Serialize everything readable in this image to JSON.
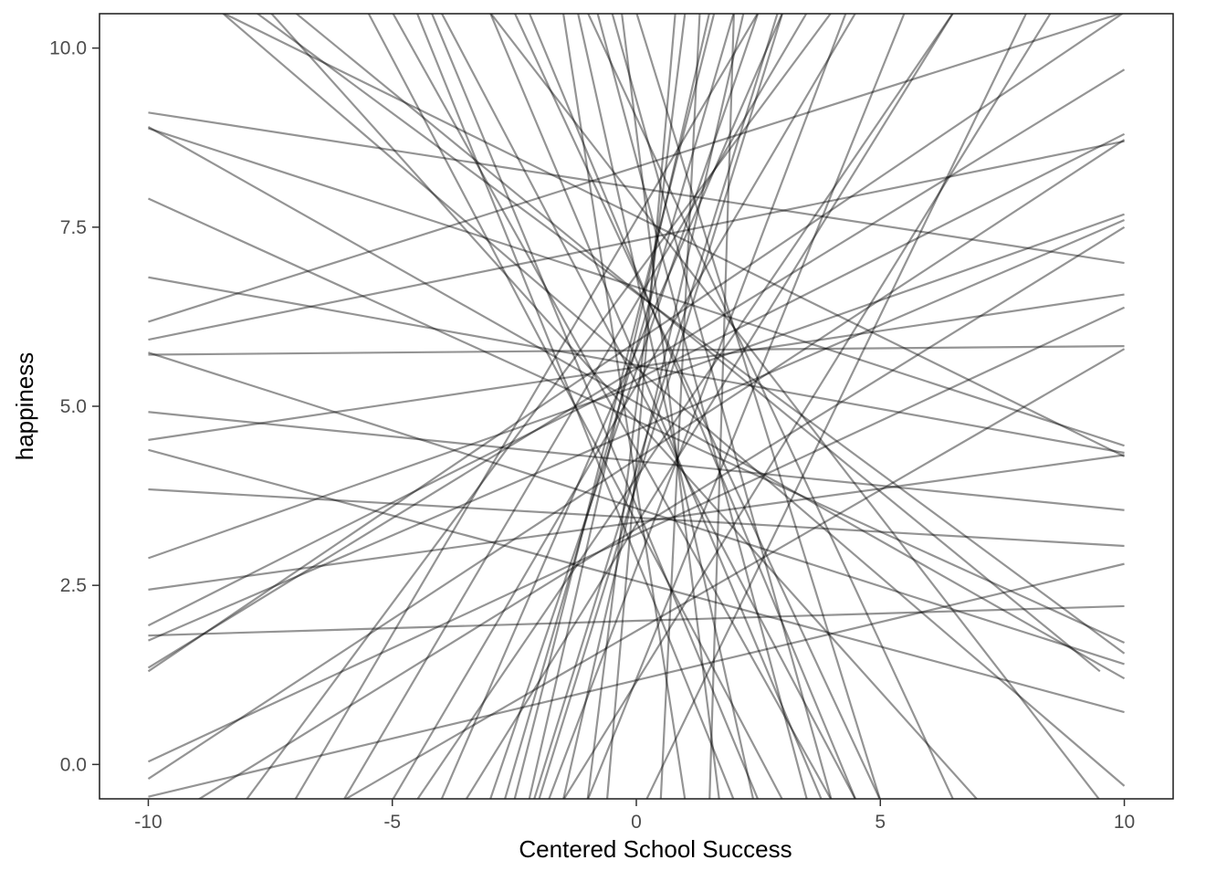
{
  "chart_data": {
    "type": "line",
    "title": "",
    "xlabel": "Centered School Success",
    "ylabel": "happiness",
    "xlim": [
      -11,
      11
    ],
    "ylim": [
      -0.48,
      10.48
    ],
    "x_ticks": [
      -10,
      -5,
      0,
      5,
      10
    ],
    "x_tick_labels": [
      "-10",
      "-5",
      "0",
      "5",
      "10"
    ],
    "y_ticks": [
      0,
      2.5,
      5,
      7.5,
      10
    ],
    "y_tick_labels": [
      "0.0",
      "2.5",
      "5.0",
      "7.5",
      "10.0"
    ],
    "grid": false,
    "line_color": "#000000",
    "line_opacity": 0.42,
    "series": [
      {
        "x": [
          -10,
          10
        ],
        "y": [
          9.1,
          7.0
        ]
      },
      {
        "x": [
          -10,
          10
        ],
        "y": [
          8.9,
          1.2
        ]
      },
      {
        "x": [
          -10,
          10
        ],
        "y": [
          8.88,
          4.45
        ]
      },
      {
        "x": [
          -10,
          10
        ],
        "y": [
          7.9,
          1.7
        ]
      },
      {
        "x": [
          -10,
          10
        ],
        "y": [
          6.8,
          4.35
        ]
      },
      {
        "x": [
          -10,
          10
        ],
        "y": [
          6.18,
          10.5
        ]
      },
      {
        "x": [
          -10,
          10
        ],
        "y": [
          5.93,
          8.7
        ]
      },
      {
        "x": [
          -10,
          10
        ],
        "y": [
          5.75,
          1.4
        ]
      },
      {
        "x": [
          -10,
          10
        ],
        "y": [
          5.72,
          5.84
        ]
      },
      {
        "x": [
          -10,
          10
        ],
        "y": [
          4.92,
          3.55
        ]
      },
      {
        "x": [
          -10,
          10
        ],
        "y": [
          4.53,
          6.56
        ]
      },
      {
        "x": [
          -10,
          10
        ],
        "y": [
          4.39,
          0.73
        ]
      },
      {
        "x": [
          -10,
          10
        ],
        "y": [
          3.84,
          3.05
        ]
      },
      {
        "x": [
          -10,
          10
        ],
        "y": [
          2.88,
          7.68
        ]
      },
      {
        "x": [
          -10,
          10
        ],
        "y": [
          2.44,
          4.32
        ]
      },
      {
        "x": [
          -10,
          10
        ],
        "y": [
          1.94,
          8.8
        ]
      },
      {
        "x": [
          -10,
          10
        ],
        "y": [
          1.8,
          2.21
        ]
      },
      {
        "x": [
          -10,
          10
        ],
        "y": [
          1.73,
          7.6
        ]
      },
      {
        "x": [
          -10,
          10
        ],
        "y": [
          1.35,
          9.7
        ]
      },
      {
        "x": [
          -10,
          10
        ],
        "y": [
          0.04,
          6.38
        ]
      },
      {
        "x": [
          -10,
          10
        ],
        "y": [
          -0.2,
          8.72
        ]
      },
      {
        "x": [
          -10,
          10
        ],
        "y": [
          -0.45,
          2.8
        ]
      },
      {
        "x": [
          -8.5,
          10
        ],
        "y": [
          10.5,
          -0.3
        ]
      },
      {
        "x": [
          -7.8,
          10
        ],
        "y": [
          10.5,
          1.55
        ]
      },
      {
        "x": [
          -7.5,
          7.0
        ],
        "y": [
          10.5,
          -0.5
        ]
      },
      {
        "x": [
          -8.0,
          4.0
        ],
        "y": [
          -0.5,
          10.5
        ]
      },
      {
        "x": [
          -7.0,
          2.5
        ],
        "y": [
          -0.5,
          10.5
        ]
      },
      {
        "x": [
          -6.0,
          3.5
        ],
        "y": [
          -0.5,
          10.5
        ]
      },
      {
        "x": [
          -5.0,
          4.5
        ],
        "y": [
          -0.5,
          10.5
        ]
      },
      {
        "x": [
          -4.5,
          6.5
        ],
        "y": [
          -0.5,
          10.5
        ]
      },
      {
        "x": [
          -4.0,
          3.0
        ],
        "y": [
          -0.5,
          10.5
        ]
      },
      {
        "x": [
          -3.0,
          2.5
        ],
        "y": [
          -0.5,
          10.5
        ]
      },
      {
        "x": [
          -2.7,
          2.0
        ],
        "y": [
          -0.5,
          10.5
        ]
      },
      {
        "x": [
          -2.5,
          1.6
        ],
        "y": [
          -0.5,
          10.5
        ]
      },
      {
        "x": [
          -2.2,
          1.5
        ],
        "y": [
          -0.5,
          10.5
        ]
      },
      {
        "x": [
          -2.1,
          2.9
        ],
        "y": [
          -0.5,
          10.5
        ]
      },
      {
        "x": [
          -2.0,
          3.0
        ],
        "y": [
          -0.5,
          10.5
        ]
      },
      {
        "x": [
          -1.8,
          4.3
        ],
        "y": [
          -0.5,
          10.5
        ]
      },
      {
        "x": [
          -1.5,
          2.2
        ],
        "y": [
          -0.5,
          10.5
        ]
      },
      {
        "x": [
          -1.0,
          1.0
        ],
        "y": [
          -0.5,
          10.5
        ]
      },
      {
        "x": [
          -0.6,
          0.8
        ],
        "y": [
          -0.5,
          10.5
        ]
      },
      {
        "x": [
          -5.5,
          3.0
        ],
        "y": [
          10.5,
          -0.5
        ]
      },
      {
        "x": [
          -5.0,
          4.0
        ],
        "y": [
          10.5,
          -0.5
        ]
      },
      {
        "x": [
          -4.5,
          2.0
        ],
        "y": [
          10.5,
          -0.5
        ]
      },
      {
        "x": [
          -4.2,
          2.5
        ],
        "y": [
          10.5,
          -0.5
        ]
      },
      {
        "x": [
          -4.0,
          4.5
        ],
        "y": [
          10.5,
          -0.5
        ]
      },
      {
        "x": [
          -3.0,
          3.8
        ],
        "y": [
          10.5,
          -0.5
        ]
      },
      {
        "x": [
          -2.5,
          5.0
        ],
        "y": [
          10.5,
          -0.5
        ]
      },
      {
        "x": [
          -2.2,
          4.5
        ],
        "y": [
          10.5,
          -0.5
        ]
      },
      {
        "x": [
          -1.5,
          1.0
        ],
        "y": [
          10.5,
          -0.5
        ]
      },
      {
        "x": [
          -1.0,
          6.5
        ],
        "y": [
          10.5,
          -0.5
        ]
      },
      {
        "x": [
          -0.8,
          3.5
        ],
        "y": [
          10.5,
          -0.5
        ]
      },
      {
        "x": [
          -0.5,
          4.0
        ],
        "y": [
          10.5,
          -0.5
        ]
      },
      {
        "x": [
          0.0,
          5.0
        ],
        "y": [
          10.5,
          -0.5
        ]
      },
      {
        "x": [
          -3.0,
          9.5
        ],
        "y": [
          10.5,
          -0.5
        ]
      },
      {
        "x": [
          -10,
          10
        ],
        "y": [
          1.3,
          10.5
        ]
      },
      {
        "x": [
          -9.0,
          10
        ],
        "y": [
          -0.5,
          7.5
        ]
      },
      {
        "x": [
          -7.0,
          9.5
        ],
        "y": [
          10.5,
          1.3
        ]
      },
      {
        "x": [
          -8.5,
          10
        ],
        "y": [
          10.5,
          4.3
        ]
      },
      {
        "x": [
          -6.0,
          10
        ],
        "y": [
          -0.5,
          5.8
        ]
      },
      {
        "x": [
          -3.5,
          6.5
        ],
        "y": [
          -0.5,
          10.5
        ]
      },
      {
        "x": [
          -1.5,
          8.5
        ],
        "y": [
          -0.5,
          10.5
        ]
      },
      {
        "x": [
          -1.0,
          5.5
        ],
        "y": [
          -0.5,
          10.5
        ]
      },
      {
        "x": [
          0.2,
          8.0
        ],
        "y": [
          -0.5,
          10.5
        ]
      },
      {
        "x": [
          1.5,
          2.0
        ],
        "y": [
          -0.5,
          10.5
        ]
      },
      {
        "x": [
          0.5,
          1.3
        ],
        "y": [
          -0.5,
          10.5
        ]
      },
      {
        "x": [
          -0.3,
          1.7
        ],
        "y": [
          10.5,
          -0.5
        ]
      },
      {
        "x": [
          -1.2,
          2.4
        ],
        "y": [
          10.5,
          -0.5
        ]
      }
    ]
  }
}
